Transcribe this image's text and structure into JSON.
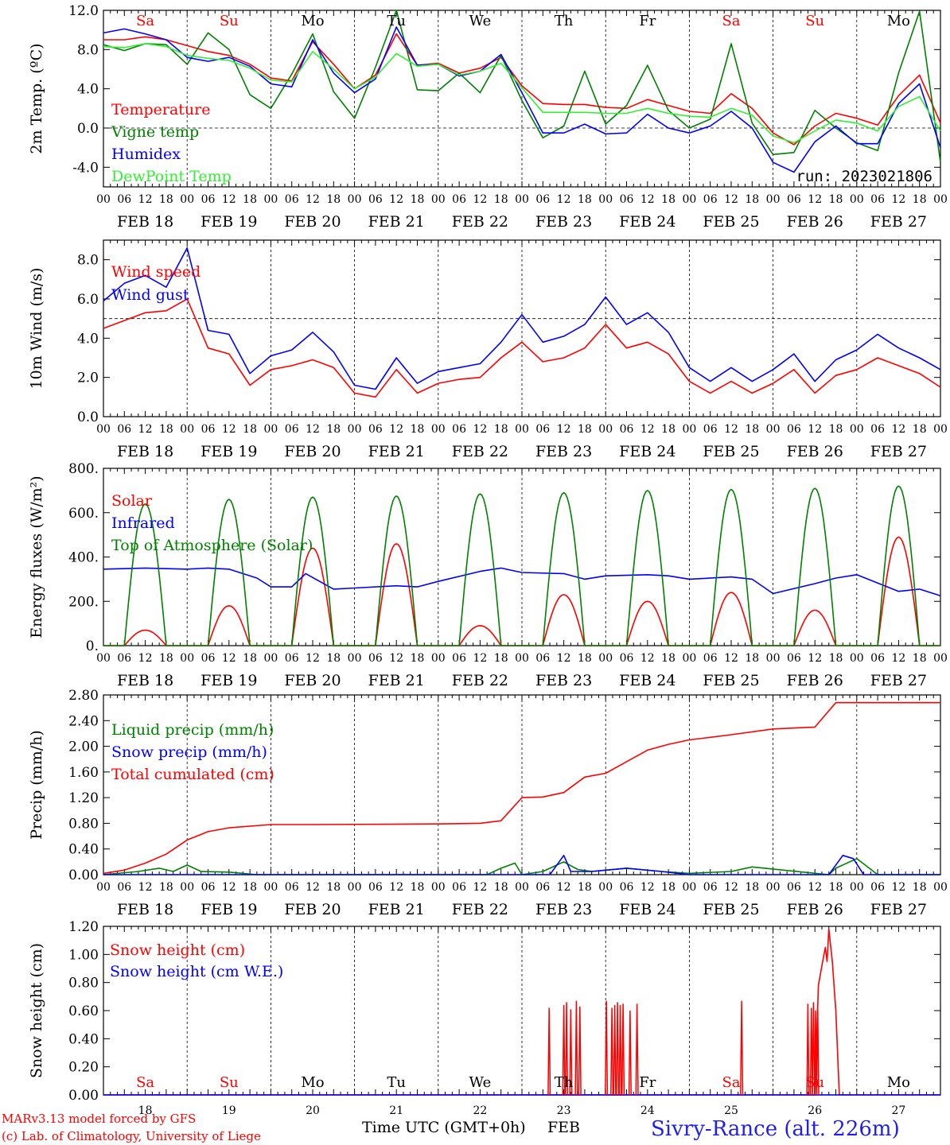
{
  "footer": {
    "credit_line1": "MARv3.13 model forced by GFS",
    "credit_line2": "(c) Lab. of Climatology, University of Liege",
    "time_axis_label": "Time UTC (GMT+0h)",
    "month": "FEB",
    "station": "Sivry-Rance (alt. 226m)"
  },
  "colors": {
    "red": "#ff0000",
    "dark_green": "#008000",
    "blue": "#0000ff",
    "light_green": "#33ee33",
    "weekend_label": "#ff0000",
    "weekday_label": "#000000",
    "ref_line": "#000000"
  },
  "days": {
    "names": [
      "Sa",
      "Su",
      "Mo",
      "Tu",
      "We",
      "Th",
      "Fr",
      "Sa",
      "Su",
      "Mo"
    ],
    "weekend": [
      true,
      true,
      false,
      false,
      false,
      false,
      false,
      true,
      true,
      false
    ],
    "dates": [
      "FEB 18",
      "FEB 19",
      "FEB 20",
      "FEB 21",
      "FEB 22",
      "FEB 23",
      "FEB 24",
      "FEB 25",
      "FEB 26",
      "FEB 27"
    ],
    "day_numbers": [
      "18",
      "19",
      "20",
      "21",
      "22",
      "23",
      "24",
      "25",
      "26",
      "27"
    ],
    "hour_ticks": [
      "00",
      "06",
      "12",
      "18"
    ],
    "final_tick": "00"
  },
  "chart_data": [
    {
      "id": "temp",
      "type": "line",
      "ylabel": "2m Temp. (ºC)",
      "ylim": [
        -6,
        12
      ],
      "yticks": [
        -4,
        0,
        4,
        8,
        12
      ],
      "ytick_labels": [
        "-4.0",
        "0.0",
        "4.0",
        "8.0",
        "12.0"
      ],
      "ref_line": 0,
      "show_day_names": true,
      "note": "run: 2023021806",
      "x_unit": "hours since FEB 18 00 UTC",
      "series": [
        {
          "name": "Temperature",
          "color": "red",
          "x": [
            0,
            6,
            12,
            18,
            24,
            30,
            36,
            42,
            48,
            54,
            60,
            66,
            72,
            78,
            84,
            90,
            96,
            102,
            108,
            114,
            120,
            126,
            132,
            138,
            144,
            150,
            156,
            162,
            168,
            174,
            180,
            186,
            192,
            198,
            204,
            210,
            216,
            222,
            228,
            234,
            240
          ],
          "values": [
            9,
            9,
            9.3,
            9,
            8.4,
            7.8,
            7.4,
            6.5,
            5.1,
            4.8,
            8.8,
            6.5,
            4,
            5.4,
            9.6,
            6.4,
            6.6,
            5.6,
            6.1,
            7.2,
            4.3,
            2.5,
            2.4,
            2.4,
            2.1,
            2,
            2.9,
            2.3,
            1.7,
            1.5,
            3.5,
            2,
            -0.5,
            -1.7,
            0.2,
            1.5,
            1,
            0.3,
            3.3,
            5.4,
            0.5
          ]
        },
        {
          "name": "Vigne temp",
          "color": "dark_green",
          "x": [
            0,
            6,
            12,
            18,
            24,
            30,
            36,
            42,
            48,
            54,
            60,
            66,
            72,
            78,
            84,
            90,
            96,
            102,
            108,
            114,
            120,
            126,
            132,
            138,
            144,
            150,
            156,
            162,
            168,
            174,
            180,
            186,
            192,
            198,
            204,
            210,
            216,
            222,
            228,
            234,
            240
          ],
          "values": [
            8.5,
            7.9,
            8.6,
            8.5,
            6.5,
            9.7,
            8,
            3.4,
            2,
            5.5,
            9.6,
            3.7,
            1,
            6.2,
            12,
            3.9,
            3.8,
            5.6,
            3.6,
            7.4,
            2.8,
            -1,
            0.2,
            5.8,
            0.4,
            2.3,
            6.4,
            1.8,
            0,
            0.9,
            8.6,
            0.5,
            -2.7,
            -2.5,
            1.8,
            0,
            -1.5,
            -2.3,
            5.6,
            11.9,
            -3.5
          ]
        },
        {
          "name": "Humidex",
          "color": "blue",
          "x": [
            0,
            6,
            12,
            18,
            24,
            30,
            36,
            42,
            48,
            54,
            60,
            66,
            72,
            78,
            84,
            90,
            96,
            102,
            108,
            114,
            120,
            126,
            132,
            138,
            144,
            150,
            156,
            162,
            168,
            174,
            180,
            186,
            192,
            198,
            204,
            210,
            216,
            222,
            228,
            234,
            240
          ],
          "values": [
            9.7,
            10.1,
            9.6,
            9,
            7.2,
            6.8,
            7.2,
            6.3,
            4.5,
            4.2,
            9,
            5.6,
            3.6,
            5,
            10.3,
            6.4,
            6.5,
            5.3,
            5.8,
            7.5,
            3.6,
            -0.5,
            -0.5,
            0.4,
            -0.6,
            -0.5,
            1.4,
            0,
            -0.5,
            0.2,
            1.7,
            0,
            -3.5,
            -4.5,
            -1.4,
            0.2,
            -1.6,
            -1.6,
            2.5,
            4.5,
            -2
          ]
        },
        {
          "name": "DewPoint Temp",
          "color": "light_green",
          "x": [
            0,
            6,
            12,
            18,
            24,
            30,
            36,
            42,
            48,
            54,
            60,
            66,
            72,
            78,
            84,
            90,
            96,
            102,
            108,
            114,
            120,
            126,
            132,
            138,
            144,
            150,
            156,
            162,
            168,
            174,
            180,
            186,
            192,
            198,
            204,
            210,
            216,
            222,
            228,
            234,
            240
          ],
          "values": [
            8.3,
            8.2,
            8.6,
            8.3,
            7.4,
            7.1,
            6.9,
            6.1,
            4.9,
            4.7,
            7.8,
            6,
            4,
            5.2,
            7.6,
            6.3,
            6.5,
            5.4,
            5.8,
            6.6,
            4.1,
            1.6,
            1.6,
            1.6,
            1.5,
            1.5,
            2,
            1.5,
            1.2,
            1.1,
            2,
            1.3,
            -0.8,
            -1.5,
            -0.3,
            0.8,
            0.5,
            -0.3,
            2.2,
            3.2,
            -0.3
          ]
        }
      ]
    },
    {
      "id": "wind",
      "type": "line",
      "ylabel": "10m Wind (m/s)",
      "ylim": [
        0,
        9
      ],
      "yticks": [
        0,
        2,
        4,
        6,
        8
      ],
      "ytick_labels": [
        "0.0",
        "2.0",
        "4.0",
        "6.0",
        "8.0"
      ],
      "ref_line": 5,
      "show_day_names": false,
      "x_unit": "hours since FEB 18 00 UTC",
      "series": [
        {
          "name": "Wind speed",
          "color": "red",
          "x": [
            0,
            6,
            12,
            18,
            24,
            30,
            36,
            42,
            48,
            54,
            60,
            66,
            72,
            78,
            84,
            90,
            96,
            102,
            108,
            114,
            120,
            126,
            132,
            138,
            144,
            150,
            156,
            162,
            168,
            174,
            180,
            186,
            192,
            198,
            204,
            210,
            216,
            222,
            228,
            234,
            240
          ],
          "values": [
            4.5,
            4.9,
            5.3,
            5.4,
            6,
            3.5,
            3.2,
            1.6,
            2.4,
            2.6,
            2.9,
            2.5,
            1.2,
            1,
            2.4,
            1.2,
            1.7,
            1.9,
            2,
            3,
            3.8,
            2.8,
            3,
            3.5,
            4.7,
            3.5,
            3.8,
            3.2,
            1.8,
            1.2,
            1.8,
            1.2,
            1.7,
            2.4,
            1.2,
            2.1,
            2.4,
            3,
            2.6,
            2.2,
            1.5
          ]
        },
        {
          "name": "Wind gust",
          "color": "blue",
          "x": [
            0,
            6,
            12,
            18,
            24,
            30,
            36,
            42,
            48,
            54,
            60,
            66,
            72,
            78,
            84,
            90,
            96,
            102,
            108,
            114,
            120,
            126,
            132,
            138,
            144,
            150,
            156,
            162,
            168,
            174,
            180,
            186,
            192,
            198,
            204,
            210,
            216,
            222,
            228,
            234,
            240
          ],
          "values": [
            5.9,
            6.8,
            7.2,
            6.6,
            8.6,
            4.4,
            4.2,
            2.2,
            3.1,
            3.4,
            4.3,
            3.3,
            1.6,
            1.4,
            3,
            1.7,
            2.3,
            2.5,
            2.7,
            3.8,
            5.2,
            3.8,
            4.1,
            4.7,
            6.1,
            4.7,
            5.3,
            4.3,
            2.5,
            1.8,
            2.5,
            1.8,
            2.4,
            3.2,
            1.8,
            2.9,
            3.4,
            4.2,
            3.5,
            3,
            2.4
          ]
        }
      ]
    },
    {
      "id": "energy",
      "type": "line",
      "ylabel": "Energy fluxes (W/m²)",
      "ylim": [
        0,
        800
      ],
      "yticks": [
        0,
        200,
        400,
        600,
        800
      ],
      "ytick_labels": [
        "0.",
        "200.",
        "400.",
        "600.",
        "800."
      ],
      "show_day_names": false,
      "x_unit": "hours since FEB 18 00 UTC",
      "solar_peaks_by_day": [
        70,
        180,
        440,
        460,
        90,
        230,
        200,
        240,
        160,
        490
      ],
      "toa_peaks_by_day": [
        640,
        660,
        670,
        675,
        685,
        690,
        700,
        705,
        710,
        720
      ],
      "series": [
        {
          "name": "Solar",
          "color": "red",
          "kind": "diurnal",
          "peak_key": "solar_peaks_by_day"
        },
        {
          "name": "Infrared",
          "color": "blue",
          "x": [
            0,
            12,
            24,
            30,
            36,
            44,
            48,
            54,
            58,
            66,
            72,
            84,
            90,
            96,
            108,
            114,
            120,
            132,
            138,
            144,
            156,
            162,
            168,
            180,
            186,
            192,
            204,
            210,
            216,
            228,
            234,
            240
          ],
          "values": [
            345,
            350,
            345,
            350,
            345,
            305,
            265,
            265,
            325,
            255,
            260,
            270,
            265,
            290,
            335,
            350,
            330,
            325,
            300,
            315,
            320,
            315,
            300,
            310,
            300,
            235,
            280,
            305,
            320,
            245,
            255,
            225
          ]
        },
        {
          "name": "Top of Atmosphere (Solar)",
          "color": "dark_green",
          "kind": "diurnal",
          "peak_key": "toa_peaks_by_day"
        }
      ]
    },
    {
      "id": "precip",
      "type": "line",
      "ylabel": "Precip (mm/h)",
      "ylim": [
        0,
        2.8
      ],
      "yticks": [
        0,
        0.4,
        0.8,
        1.2,
        1.6,
        2.0,
        2.4,
        2.8
      ],
      "ytick_labels": [
        "0.00",
        "0.40",
        "0.80",
        "1.20",
        "1.60",
        "2.00",
        "2.40",
        "2.80"
      ],
      "show_day_names": false,
      "x_unit": "hours since FEB 18 00 UTC",
      "series": [
        {
          "name": "Liquid precip (mm/h)",
          "color": "dark_green",
          "x": [
            0,
            10,
            16,
            20,
            24,
            28,
            36,
            44,
            110,
            114,
            118,
            120,
            126,
            132,
            136,
            140,
            150,
            160,
            168,
            180,
            186,
            208,
            210,
            216,
            222,
            228,
            240
          ],
          "values": [
            0,
            0.05,
            0.1,
            0.05,
            0.15,
            0.05,
            0.04,
            0,
            0,
            0.1,
            0.18,
            0,
            0.05,
            0.2,
            0.08,
            0.05,
            0.1,
            0.05,
            0.02,
            0.05,
            0.12,
            0,
            0.1,
            0.25,
            0,
            0,
            0
          ]
        },
        {
          "name": "Snow precip (mm/h)",
          "color": "blue",
          "x": [
            0,
            128,
            132,
            134,
            140,
            150,
            160,
            168,
            208,
            212,
            215,
            218,
            240
          ],
          "values": [
            0,
            0,
            0.3,
            0.05,
            0.05,
            0.1,
            0.05,
            0,
            0,
            0.3,
            0.25,
            0,
            0
          ]
        },
        {
          "name": "Total cumulated (cm)",
          "color": "red",
          "x": [
            0,
            6,
            12,
            18,
            24,
            30,
            36,
            48,
            60,
            96,
            108,
            114,
            120,
            126,
            132,
            138,
            144,
            150,
            156,
            162,
            168,
            174,
            180,
            192,
            204,
            210,
            216,
            240
          ],
          "values": [
            0.02,
            0.07,
            0.18,
            0.32,
            0.54,
            0.67,
            0.73,
            0.78,
            0.78,
            0.79,
            0.8,
            0.84,
            1.2,
            1.21,
            1.28,
            1.52,
            1.58,
            1.76,
            1.94,
            2.03,
            2.1,
            2.14,
            2.18,
            2.27,
            2.3,
            2.68,
            2.68,
            2.68
          ]
        }
      ]
    },
    {
      "id": "snow",
      "type": "line",
      "ylabel": "Snow height (cm)",
      "ylim": [
        0,
        1.2
      ],
      "yticks": [
        0,
        0.2,
        0.4,
        0.6,
        0.8,
        1.0,
        1.2
      ],
      "ytick_labels": [
        "0.00",
        "0.20",
        "0.40",
        "0.60",
        "0.80",
        "1.00",
        "1.20"
      ],
      "show_day_names": true,
      "x_unit": "hours since FEB 18 00 UTC",
      "spikes_x": [
        127.8,
        132,
        132.8,
        134,
        135.6,
        136.6,
        144.2,
        145.8,
        146.6,
        147.4,
        148.2,
        149,
        151,
        153,
        183,
        202,
        203,
        203.6,
        204.2,
        204.8
      ],
      "spikes_y": [
        0.62,
        0.64,
        0.66,
        0.61,
        0.67,
        0.63,
        0.67,
        0.62,
        0.64,
        0.66,
        0.64,
        0.65,
        0.6,
        0.65,
        0.67,
        0.65,
        0.62,
        0.66,
        0.6,
        0.65
      ],
      "series": [
        {
          "name": "Snow height (cm)",
          "color": "red",
          "x": [
            0,
            204,
            205,
            206,
            207,
            207.5,
            208,
            209,
            210,
            211,
            240
          ],
          "values": [
            0,
            0,
            0.78,
            0.92,
            1.05,
            0.95,
            1.18,
            0.95,
            0.6,
            0,
            0
          ]
        },
        {
          "name": "Snow height (cm W.E.)",
          "color": "blue",
          "x": [
            0,
            240
          ],
          "values": [
            0,
            0
          ]
        }
      ]
    }
  ]
}
